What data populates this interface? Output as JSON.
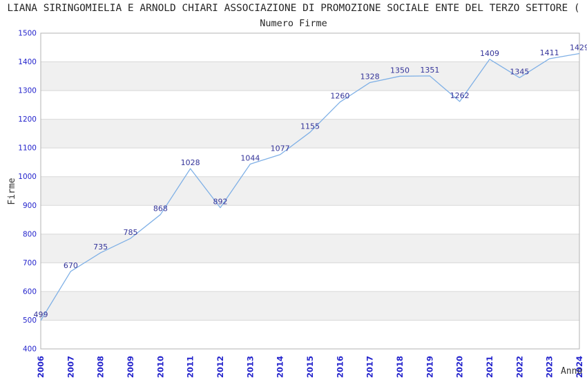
{
  "header": {
    "title": "LIANA SIRINGOMIELIA E ARNOLD CHIARI ASSOCIAZIONE DI PROMOZIONE SOCIALE ENTE DEL TERZO SETTORE (",
    "subtitle": "Numero Firme"
  },
  "chart_data": {
    "type": "line",
    "title": "Numero Firme",
    "xlabel": "Anno",
    "ylabel": "Firme",
    "categories": [
      "2006",
      "2007",
      "2008",
      "2009",
      "2010",
      "2011",
      "2012",
      "2013",
      "2014",
      "2015",
      "2016",
      "2017",
      "2018",
      "2019",
      "2020",
      "2021",
      "2022",
      "2023",
      "2024"
    ],
    "values": [
      499,
      670,
      735,
      785,
      868,
      1028,
      892,
      1044,
      1077,
      1155,
      1260,
      1328,
      1350,
      1351,
      1262,
      1409,
      1345,
      1411,
      1429
    ],
    "ylim": [
      400,
      1500
    ],
    "ytick_step": 100,
    "grid": true,
    "legend": false,
    "value_labels_shown": true,
    "colors": {
      "line": "#7fb0e6",
      "value_label": "#333399",
      "tick_label": "#2323cc",
      "band": "#f0f0f0",
      "gridline": "#d8d8d8",
      "plot_border": "#b3b3b3",
      "title_text": "#262626",
      "axis_title_text": "#333333",
      "background": "#ffffff"
    }
  }
}
